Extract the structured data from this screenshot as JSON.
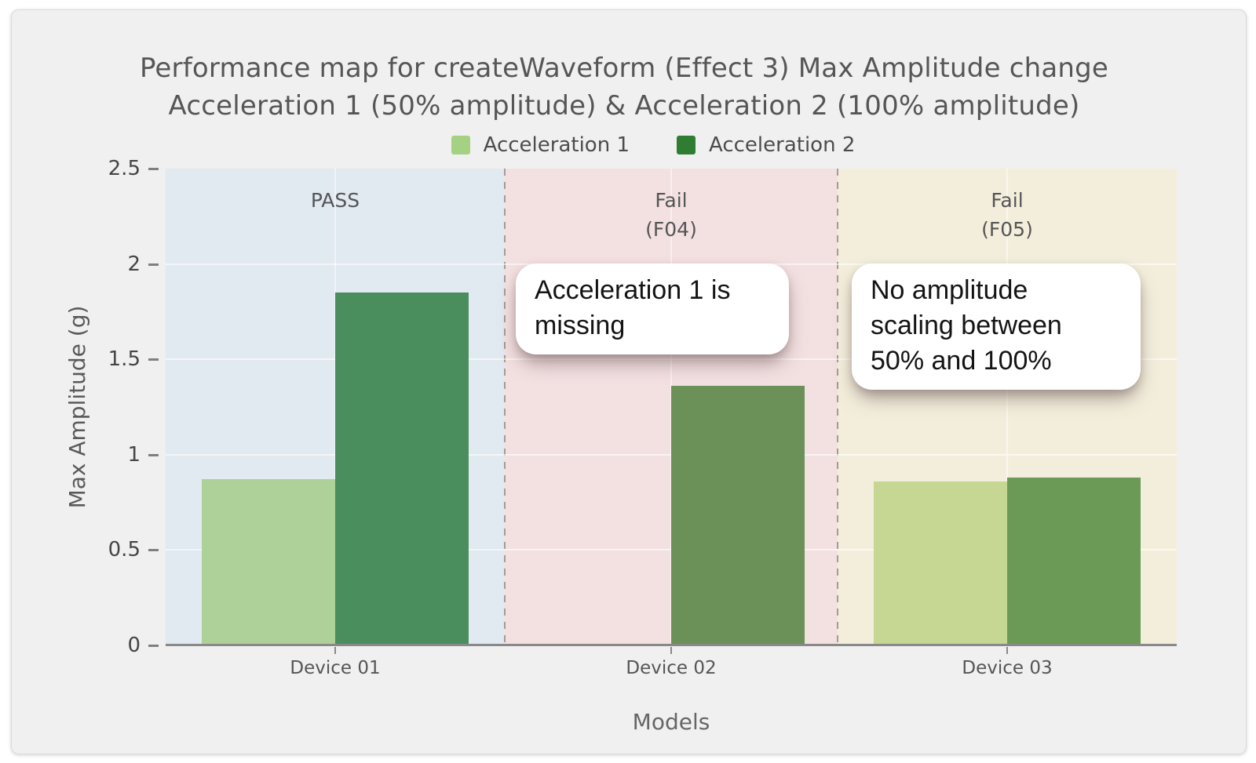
{
  "title": {
    "line1": "Performance map for createWaveform (Effect 3) Max Amplitude change",
    "line2": "Acceleration 1 (50% amplitude) & Acceleration 2 (100% amplitude)"
  },
  "legend": [
    {
      "label": "Acceleration 1",
      "color": "#a5d183"
    },
    {
      "label": "Acceleration 2",
      "color": "#2f7d32"
    }
  ],
  "y_axis": {
    "title": "Max Amplitude (g)",
    "tick_values": [
      0,
      0.5,
      1,
      1.5,
      2,
      2.5
    ],
    "tick_labels": [
      "0",
      "0.5",
      "1",
      "1.5",
      "2",
      "2.5"
    ],
    "range": [
      0,
      2.5
    ]
  },
  "x_axis": {
    "title": "Models"
  },
  "regions": [
    {
      "label_lines": [
        "PASS"
      ],
      "bg": "#e1e9f1"
    },
    {
      "label_lines": [
        "Fail",
        "(F04)"
      ],
      "bg": "#f3e0e1"
    },
    {
      "label_lines": [
        "Fail",
        "(F05)"
      ],
      "bg": "#f3eedc"
    }
  ],
  "annotations": [
    {
      "text": "Acceleration 1 is\nmissing"
    },
    {
      "text": "No amplitude\nscaling between\n50% and 100%"
    }
  ],
  "chart_data": {
    "type": "bar",
    "title": "Performance map for createWaveform (Effect 3) Max Amplitude change — Acceleration 1 (50% amplitude) & Acceleration 2 (100% amplitude)",
    "categories": [
      "Device 01",
      "Device 02",
      "Device 03"
    ],
    "series": [
      {
        "name": "Acceleration 1",
        "values": [
          0.87,
          null,
          0.86
        ]
      },
      {
        "name": "Acceleration 2",
        "values": [
          1.85,
          1.36,
          0.88
        ]
      }
    ],
    "xlabel": "Models",
    "ylabel": "Max Amplitude (g)",
    "ylim": [
      0,
      2.5
    ],
    "grid": true,
    "legend_position": "top-center",
    "zones": [
      {
        "category": "Device 01",
        "label": "PASS",
        "bg": "#e1e9f1"
      },
      {
        "category": "Device 02",
        "label": "Fail (F04)",
        "bg": "#f3e0e1"
      },
      {
        "category": "Device 03",
        "label": "Fail (F05)",
        "bg": "#f3eedc"
      }
    ],
    "display_colors": {
      "series": [
        [
          "#aed19a",
          null,
          "#c5d792"
        ],
        [
          "#4b8e5e",
          "#6b9058",
          "#6b9a57"
        ]
      ]
    }
  }
}
